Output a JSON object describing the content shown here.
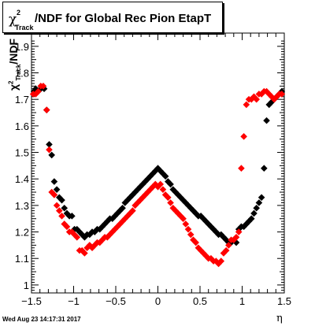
{
  "title": {
    "chi": "χ",
    "sup": "2",
    "sub": "Track",
    "rest": "/NDF for Global Rec Pion EtapT"
  },
  "ylabel": {
    "chi": "χ",
    "sup": "2",
    "sub": "Track",
    "rest": "/NDF"
  },
  "xlabel": "η",
  "date_stamp": "Wed Aug 23 14:17:31 2017",
  "chart_data": {
    "type": "scatter",
    "xlim": [
      -1.5,
      1.5
    ],
    "ylim": [
      0.97,
      1.95
    ],
    "x_ticks": [
      "−1.5",
      "−1",
      "−0.5",
      "0",
      "0.5",
      "1",
      "1.5"
    ],
    "y_ticks": [
      "1",
      "1.1",
      "1.2",
      "1.3",
      "1.4",
      "1.5",
      "1.6",
      "1.7",
      "1.8",
      "1.9"
    ],
    "grid": false,
    "series": [
      {
        "color": "#000000",
        "x": [
          -1.47,
          -1.45,
          -1.42,
          -1.39,
          -1.35,
          -1.32,
          -1.29,
          -1.26,
          -1.23,
          -1.2,
          -1.17,
          -1.14,
          -1.11,
          -1.08,
          -1.05,
          -1.02,
          -0.99,
          -0.96,
          -0.93,
          -0.9,
          -0.87,
          -0.84,
          -0.81,
          -0.78,
          -0.75,
          -0.72,
          -0.69,
          -0.66,
          -0.63,
          -0.6,
          -0.57,
          -0.54,
          -0.51,
          -0.48,
          -0.45,
          -0.42,
          -0.39,
          -0.36,
          -0.33,
          -0.3,
          -0.27,
          -0.24,
          -0.21,
          -0.18,
          -0.15,
          -0.12,
          -0.09,
          -0.06,
          -0.03,
          0.0,
          0.03,
          0.06,
          0.09,
          0.12,
          0.15,
          0.18,
          0.21,
          0.24,
          0.27,
          0.3,
          0.33,
          0.36,
          0.39,
          0.42,
          0.45,
          0.48,
          0.51,
          0.54,
          0.57,
          0.6,
          0.63,
          0.66,
          0.69,
          0.72,
          0.75,
          0.78,
          0.81,
          0.84,
          0.87,
          0.9,
          0.93,
          0.96,
          0.99,
          1.02,
          1.05,
          1.08,
          1.11,
          1.14,
          1.17,
          1.2,
          1.23,
          1.26,
          1.29,
          1.32,
          1.35,
          1.38,
          1.41,
          1.44,
          1.47
        ],
        "y": [
          1.73,
          1.74,
          1.73,
          1.74,
          1.74,
          1.66,
          1.53,
          1.49,
          1.39,
          1.36,
          1.33,
          1.32,
          1.29,
          1.27,
          1.26,
          1.26,
          1.21,
          1.21,
          1.2,
          1.19,
          1.18,
          1.19,
          1.19,
          1.2,
          1.2,
          1.21,
          1.21,
          1.22,
          1.23,
          1.24,
          1.25,
          1.25,
          1.26,
          1.27,
          1.28,
          1.29,
          1.31,
          1.32,
          1.33,
          1.34,
          1.35,
          1.36,
          1.37,
          1.38,
          1.39,
          1.4,
          1.41,
          1.42,
          1.43,
          1.44,
          1.43,
          1.42,
          1.41,
          1.39,
          1.38,
          1.36,
          1.35,
          1.34,
          1.33,
          1.32,
          1.31,
          1.3,
          1.29,
          1.28,
          1.27,
          1.26,
          1.26,
          1.25,
          1.24,
          1.23,
          1.22,
          1.21,
          1.2,
          1.19,
          1.19,
          1.18,
          1.17,
          1.16,
          1.16,
          1.17,
          1.16,
          1.21,
          1.22,
          1.22,
          1.23,
          1.24,
          1.25,
          1.27,
          1.29,
          1.31,
          1.33,
          1.44,
          1.62,
          1.68,
          1.69,
          1.7,
          1.71,
          1.72,
          1.73
        ]
      },
      {
        "color": "#ff0000",
        "x": [
          -1.48,
          -1.45,
          -1.42,
          -1.39,
          -1.36,
          -1.32,
          -1.29,
          -1.26,
          -1.23,
          -1.2,
          -1.17,
          -1.14,
          -1.11,
          -1.08,
          -1.05,
          -1.02,
          -0.99,
          -0.96,
          -0.93,
          -0.9,
          -0.87,
          -0.84,
          -0.81,
          -0.78,
          -0.75,
          -0.72,
          -0.69,
          -0.66,
          -0.63,
          -0.6,
          -0.57,
          -0.54,
          -0.51,
          -0.48,
          -0.45,
          -0.42,
          -0.39,
          -0.36,
          -0.33,
          -0.3,
          -0.27,
          -0.24,
          -0.21,
          -0.18,
          -0.15,
          -0.12,
          -0.09,
          -0.06,
          -0.03,
          0.0,
          0.03,
          0.06,
          0.09,
          0.12,
          0.15,
          0.18,
          0.21,
          0.24,
          0.27,
          0.3,
          0.33,
          0.36,
          0.39,
          0.42,
          0.45,
          0.48,
          0.51,
          0.54,
          0.57,
          0.6,
          0.63,
          0.66,
          0.69,
          0.72,
          0.75,
          0.78,
          0.81,
          0.84,
          0.87,
          0.9,
          0.93,
          0.96,
          0.99,
          1.02,
          1.05,
          1.08,
          1.11,
          1.14,
          1.17,
          1.2,
          1.23,
          1.26,
          1.29,
          1.32,
          1.35,
          1.38,
          1.41,
          1.44,
          1.47
        ],
        "y": [
          1.72,
          1.72,
          1.73,
          1.75,
          1.75,
          1.66,
          1.51,
          1.35,
          1.34,
          1.3,
          1.28,
          1.26,
          1.23,
          1.22,
          1.2,
          1.2,
          1.19,
          1.18,
          1.13,
          1.13,
          1.12,
          1.14,
          1.15,
          1.14,
          1.15,
          1.16,
          1.16,
          1.17,
          1.18,
          1.18,
          1.19,
          1.2,
          1.21,
          1.22,
          1.23,
          1.24,
          1.25,
          1.26,
          1.27,
          1.28,
          1.3,
          1.31,
          1.32,
          1.33,
          1.34,
          1.35,
          1.36,
          1.37,
          1.38,
          1.37,
          1.38,
          1.36,
          1.34,
          1.33,
          1.31,
          1.29,
          1.28,
          1.27,
          1.26,
          1.25,
          1.23,
          1.21,
          1.19,
          1.17,
          1.16,
          1.14,
          1.13,
          1.12,
          1.11,
          1.1,
          1.1,
          1.09,
          1.09,
          1.08,
          1.09,
          1.12,
          1.13,
          1.15,
          1.17,
          1.17,
          1.18,
          1.2,
          1.44,
          1.56,
          1.68,
          1.7,
          1.7,
          1.71,
          1.7,
          1.72,
          1.72,
          1.73,
          1.73,
          1.72,
          1.71,
          1.7,
          1.71,
          1.72,
          1.72
        ]
      }
    ]
  }
}
